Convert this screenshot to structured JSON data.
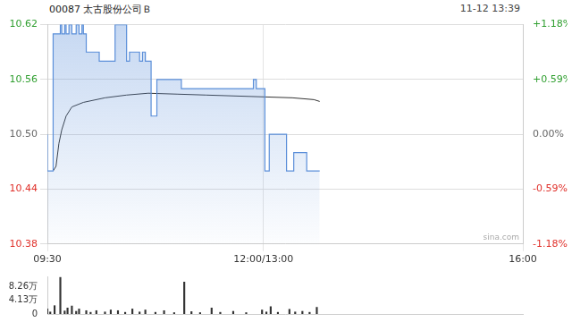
{
  "chart_data": [
    {
      "type": "line",
      "title": "00087 太古股份公司Ｂ",
      "subtitle": "11-12 13:39",
      "annotation": "sina.com",
      "xlim": [
        0,
        330
      ],
      "xticks": [
        {
          "value": 0,
          "label": "09:30"
        },
        {
          "value": 150,
          "label": "12:00/13:00"
        },
        {
          "value": 330,
          "label": "16:00"
        }
      ],
      "ylim": [
        10.38,
        10.62
      ],
      "yticks": [
        10.38,
        10.44,
        {
          "value": 10.5,
          "label": "10.50"
        },
        10.56,
        10.62
      ],
      "y2lim": [
        -1.18,
        1.18
      ],
      "y2ticks": [
        {
          "value": -1.18,
          "label": "-1.18%"
        },
        {
          "value": -0.59,
          "label": "-0.59%"
        },
        {
          "value": 0,
          "label": "0.00%"
        },
        {
          "value": 0.59,
          "label": "+0.59%"
        },
        {
          "value": 1.18,
          "label": "+1.18%"
        }
      ],
      "grid": true,
      "series": [
        {
          "type": "area",
          "line_style": "step",
          "marker": "none",
          "color": "#5b8fd9",
          "x": [
            0,
            4,
            9,
            10,
            12,
            13,
            15,
            17,
            20,
            22,
            24,
            25,
            27,
            36,
            47,
            55,
            57,
            64,
            66,
            68,
            72,
            76,
            93,
            143,
            145,
            151,
            154,
            166,
            171,
            180,
            186,
            189
          ],
          "values": [
            10.5,
            10.46,
            10.61,
            10.62,
            10.61,
            10.62,
            10.61,
            10.62,
            10.61,
            10.62,
            10.61,
            10.62,
            10.61,
            10.59,
            10.58,
            10.62,
            10.58,
            10.59,
            10.58,
            10.59,
            10.58,
            10.52,
            10.56,
            10.55,
            10.56,
            10.55,
            10.46,
            10.5,
            10.46,
            10.48,
            10.46,
            10.46
          ]
        },
        {
          "type": "line",
          "line_style": "solid",
          "marker": "none",
          "color": "#333333",
          "x": [
            4,
            6,
            8,
            10,
            13,
            17,
            25,
            40,
            55,
            70,
            90,
            110,
            150,
            170,
            185,
            189
          ],
          "values": [
            10.46,
            10.465,
            10.49,
            10.505,
            10.52,
            10.53,
            10.535,
            10.54,
            10.543,
            10.545,
            10.544,
            10.543,
            10.541,
            10.54,
            10.538,
            10.536
          ]
        }
      ]
    },
    {
      "type": "bar",
      "color": "#333333",
      "tick_labels": "y",
      "grid": false,
      "xlim": [
        0,
        330
      ],
      "ylim": [
        0,
        113000
      ],
      "yticks": [
        0,
        {
          "value": 41300,
          "label": "4.13万"
        },
        {
          "value": 82600,
          "label": "8.26万"
        }
      ],
      "x": [
        0,
        2,
        5,
        9,
        12,
        14,
        17,
        20,
        22,
        27,
        30,
        34,
        40,
        44,
        49,
        54,
        59,
        64,
        68,
        75,
        81,
        88,
        95,
        100,
        106,
        114,
        120,
        129,
        138,
        149,
        152,
        155,
        160,
        168,
        172,
        177,
        182,
        187
      ],
      "values": [
        15000,
        6000,
        25000,
        110000,
        9000,
        18000,
        24000,
        8000,
        15000,
        10000,
        5000,
        10000,
        6000,
        12000,
        10000,
        5000,
        15000,
        6000,
        12000,
        5000,
        10000,
        4000,
        96000,
        7000,
        4000,
        18000,
        5000,
        8000,
        4000,
        12000,
        6000,
        22000,
        5000,
        14000,
        6000,
        8000,
        5000,
        20000
      ]
    }
  ]
}
